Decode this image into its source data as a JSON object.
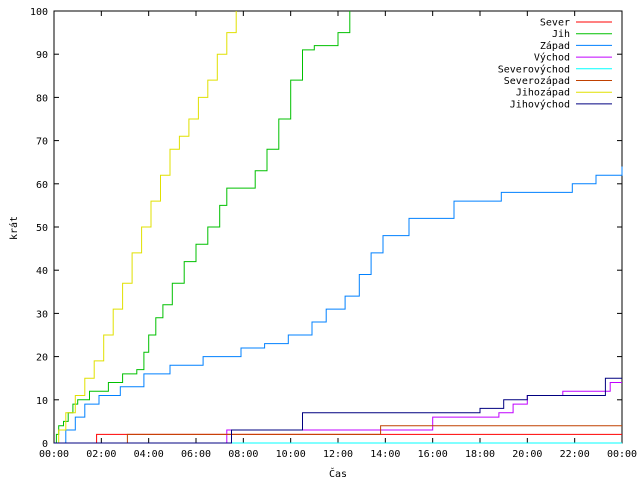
{
  "chart_data": {
    "type": "line",
    "title": "",
    "xlabel": "Čas",
    "ylabel": "krát",
    "xlim": [
      0,
      24
    ],
    "ylim": [
      0,
      100
    ],
    "x_ticks": [
      "00:00",
      "02:00",
      "04:00",
      "06:00",
      "08:00",
      "10:00",
      "12:00",
      "14:00",
      "16:00",
      "18:00",
      "20:00",
      "22:00",
      "00:00"
    ],
    "y_ticks": [
      "0",
      "10",
      "20",
      "30",
      "40",
      "50",
      "60",
      "70",
      "80",
      "90",
      "100"
    ],
    "grid": false,
    "legend_position": "top-right",
    "line_style": "step",
    "series": [
      {
        "name": "Sever",
        "color": "#ff0000",
        "x": [
          0,
          1.8,
          24
        ],
        "y": [
          0,
          2,
          2
        ]
      },
      {
        "name": "Jih",
        "color": "#00c000",
        "x": [
          0,
          0.1,
          0.2,
          0.4,
          0.6,
          0.8,
          1.0,
          1.5,
          2.3,
          2.9,
          3.5,
          3.8,
          4.0,
          4.3,
          4.6,
          5.0,
          5.5,
          6.0,
          6.5,
          7.0,
          7.3,
          8.0,
          8.5,
          9.0,
          9.5,
          10.0,
          10.5,
          11.0,
          11.5,
          12.0,
          12.5
        ],
        "y": [
          0,
          2,
          4,
          5,
          7,
          9,
          10,
          12,
          14,
          16,
          17,
          21,
          25,
          29,
          32,
          37,
          42,
          46,
          50,
          55,
          59,
          59,
          63,
          68,
          75,
          84,
          91,
          92,
          92,
          95,
          100
        ]
      },
      {
        "name": "Západ",
        "color": "#0080ff",
        "x": [
          0,
          0.5,
          0.9,
          1.3,
          1.9,
          2.8,
          3.8,
          4.9,
          6.3,
          7.9,
          8.9,
          9.9,
          10.9,
          11.5,
          12.3,
          12.9,
          13.4,
          13.9,
          15.0,
          16.9,
          18.9,
          21.9,
          22.9,
          24
        ],
        "y": [
          0,
          3,
          6,
          9,
          11,
          13,
          16,
          18,
          20,
          22,
          23,
          25,
          28,
          31,
          34,
          39,
          44,
          48,
          52,
          56,
          58,
          60,
          62,
          64
        ]
      },
      {
        "name": "Východ",
        "color": "#c000ff",
        "x": [
          0,
          7.3,
          16.0,
          18.8,
          19.4,
          20.0,
          21.5,
          23.5,
          24
        ],
        "y": [
          0,
          3,
          6,
          7,
          9,
          11,
          12,
          14,
          14
        ]
      },
      {
        "name": "Severovýchod",
        "color": "#00ffff",
        "x": [
          0,
          24
        ],
        "y": [
          0,
          0
        ]
      },
      {
        "name": "Severozápad",
        "color": "#c04000",
        "x": [
          0,
          3.1,
          13.8,
          24
        ],
        "y": [
          0,
          2,
          4,
          4
        ]
      },
      {
        "name": "Jihozápad",
        "color": "#e0e000",
        "x": [
          0,
          0.2,
          0.5,
          0.9,
          1.3,
          1.7,
          2.1,
          2.5,
          2.9,
          3.3,
          3.7,
          4.1,
          4.5,
          4.9,
          5.3,
          5.7,
          6.1,
          6.5,
          6.9,
          7.3,
          7.7
        ],
        "y": [
          0,
          3,
          7,
          11,
          15,
          19,
          25,
          31,
          37,
          44,
          50,
          56,
          62,
          68,
          71,
          75,
          80,
          84,
          90,
          95,
          100
        ]
      },
      {
        "name": "Jihovýchod",
        "color": "#000080",
        "x": [
          0,
          7.5,
          10.5,
          13.8,
          15.5,
          18.0,
          19.0,
          20.0,
          23.3,
          24
        ],
        "y": [
          0,
          3,
          7,
          7,
          7,
          8,
          10,
          11,
          15,
          15
        ]
      }
    ]
  }
}
